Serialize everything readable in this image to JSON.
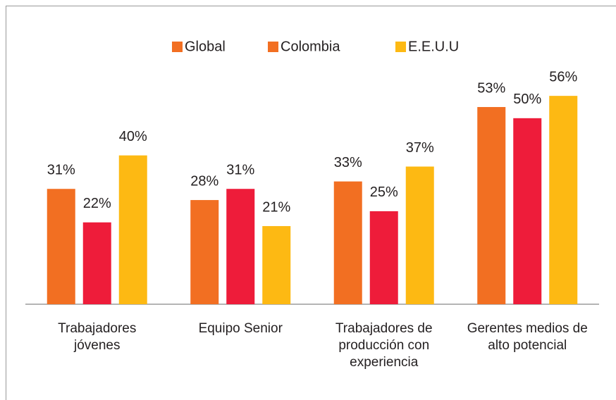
{
  "chart_data": {
    "type": "bar",
    "categories": [
      "Trabajadores jóvenes",
      "Equipo Senior",
      "Trabajadores de producción con experiencia",
      "Gerentes medios de alto potencial"
    ],
    "series": [
      {
        "name": "Global",
        "color": "#f26f22",
        "legend_color": "#f26f22",
        "values": [
          31,
          28,
          33,
          53
        ],
        "value_labels": [
          "31%",
          "28%",
          "33%",
          "53%"
        ]
      },
      {
        "name": "Colombia",
        "color": "#ee1c3a",
        "legend_color": "#f26f22",
        "values": [
          22,
          31,
          25,
          50
        ],
        "value_labels": [
          "22%",
          "31%",
          "25%",
          "50%"
        ]
      },
      {
        "name": "E.E.U.U",
        "color": "#fdb913",
        "legend_color": "#fdb913",
        "values": [
          40,
          21,
          37,
          56
        ],
        "value_labels": [
          "40%",
          "21%",
          "37%",
          "56%"
        ]
      }
    ],
    "ylim": [
      0,
      60
    ],
    "legend": "top"
  }
}
